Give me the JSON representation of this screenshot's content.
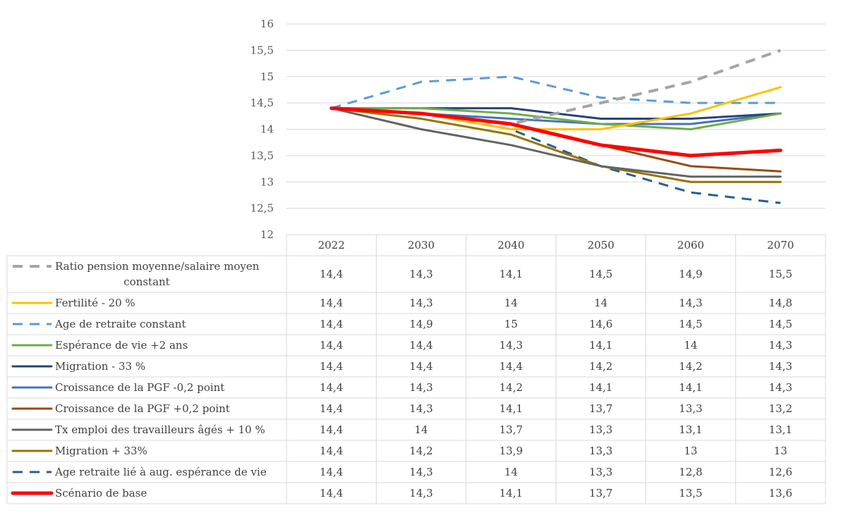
{
  "chart_data": {
    "type": "line",
    "categories": [
      "2022",
      "2030",
      "2040",
      "2050",
      "2060",
      "2070"
    ],
    "y_tick_labels": [
      "16",
      "15,5",
      "15",
      "14,5",
      "14",
      "13,5",
      "13",
      "12,5",
      "12"
    ],
    "ylim": [
      12,
      16
    ],
    "grid": true,
    "legend_placement": "data table below plot",
    "series": [
      {
        "name": "Ratio pension moyenne/salaire moyen constant",
        "name_lines": [
          "Ratio pension moyenne/salaire moyen",
          "constant"
        ],
        "values": [
          14.4,
          14.3,
          14.1,
          14.5,
          14.9,
          15.5
        ],
        "labels": [
          "14,4",
          "14,3",
          "14,1",
          "14,5",
          "14,9",
          "15,5"
        ],
        "color": "#a5a5a5",
        "dashed": true,
        "width": 4
      },
      {
        "name": "Fertilité - 20 %",
        "values": [
          14.4,
          14.3,
          14,
          14,
          14.3,
          14.8
        ],
        "labels": [
          "14,4",
          "14,3",
          "14",
          "14",
          "14,3",
          "14,8"
        ],
        "color": "#ffc000",
        "dashed": false,
        "width": 3
      },
      {
        "name": "Age de retraite constant",
        "values": [
          14.4,
          14.9,
          15,
          14.6,
          14.5,
          14.5
        ],
        "labels": [
          "14,4",
          "14,9",
          "15",
          "14,6",
          "14,5",
          "14,5"
        ],
        "color": "#5b9bd5",
        "dashed": true,
        "width": 3
      },
      {
        "name": "Espérance de vie +2 ans",
        "values": [
          14.4,
          14.4,
          14.3,
          14.1,
          14,
          14.3
        ],
        "labels": [
          "14,4",
          "14,4",
          "14,3",
          "14,1",
          "14",
          "14,3"
        ],
        "color": "#70ad47",
        "dashed": false,
        "width": 3
      },
      {
        "name": "Migration - 33 %",
        "values": [
          14.4,
          14.4,
          14.4,
          14.2,
          14.2,
          14.3
        ],
        "labels": [
          "14,4",
          "14,4",
          "14,4",
          "14,2",
          "14,2",
          "14,3"
        ],
        "color": "#264478",
        "dashed": false,
        "width": 3
      },
      {
        "name": "Croissance de la PGF -0,2 point",
        "values": [
          14.4,
          14.3,
          14.2,
          14.1,
          14.1,
          14.3
        ],
        "labels": [
          "14,4",
          "14,3",
          "14,2",
          "14,1",
          "14,1",
          "14,3"
        ],
        "color": "#4472c4",
        "dashed": false,
        "width": 3
      },
      {
        "name": "Croissance de la PGF +0,2 point",
        "values": [
          14.4,
          14.3,
          14.1,
          13.7,
          13.3,
          13.2
        ],
        "labels": [
          "14,4",
          "14,3",
          "14,1",
          "13,7",
          "13,3",
          "13,2"
        ],
        "color": "#9e480e",
        "dashed": false,
        "width": 3
      },
      {
        "name": "Tx emploi des travailleurs âgés + 10 %",
        "values": [
          14.4,
          14,
          13.7,
          13.3,
          13.1,
          13.1
        ],
        "labels": [
          "14,4",
          "14",
          "13,7",
          "13,3",
          "13,1",
          "13,1"
        ],
        "color": "#636363",
        "dashed": false,
        "width": 3
      },
      {
        "name": "Migration + 33%",
        "values": [
          14.4,
          14.2,
          13.9,
          13.3,
          13,
          13
        ],
        "labels": [
          "14,4",
          "14,2",
          "13,9",
          "13,3",
          "13",
          "13"
        ],
        "color": "#997300",
        "dashed": false,
        "width": 3
      },
      {
        "name": "Age retraite lié à aug. espérance de vie",
        "values": [
          14.4,
          14.3,
          14,
          13.3,
          12.8,
          12.6
        ],
        "labels": [
          "14,4",
          "14,3",
          "14",
          "13,3",
          "12,8",
          "12,6"
        ],
        "color": "#255e91",
        "dashed": true,
        "width": 3
      },
      {
        "name": "Scénario de base",
        "values": [
          14.4,
          14.3,
          14.1,
          13.7,
          13.5,
          13.6
        ],
        "labels": [
          "14,4",
          "14,3",
          "14,1",
          "13,7",
          "13,5",
          "13,6"
        ],
        "color": "#ff0000",
        "dashed": false,
        "width": 5
      }
    ]
  }
}
